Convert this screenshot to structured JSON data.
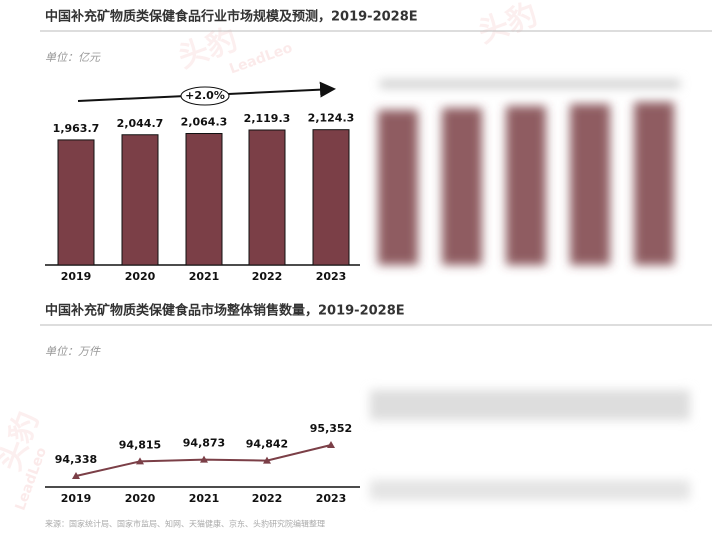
{
  "chart_data": [
    {
      "type": "bar",
      "title": "中国补充矿物质类保健食品行业市场规模及预测，2019-2028E",
      "unit": "单位：亿元",
      "annotation": "+2.0%",
      "categories": [
        "2019",
        "2020",
        "2021",
        "2022",
        "2023"
      ],
      "values": [
        1963.7,
        2044.7,
        2064.3,
        2119.3,
        2124.3
      ],
      "value_labels": [
        "1,963.7",
        "2,044.7",
        "2,064.3",
        "2,119.3",
        "2,124.3"
      ],
      "color": "#7b3f47"
    },
    {
      "type": "line",
      "title": "中国补充矿物质类保健食品市场整体销售数量，2019-2028E",
      "unit": "单位：万件",
      "categories": [
        "2019",
        "2020",
        "2021",
        "2022",
        "2023"
      ],
      "values": [
        94338,
        94815,
        94873,
        94842,
        95352
      ],
      "value_labels": [
        "94,338",
        "94,815",
        "94,873",
        "94,842",
        "95,352"
      ],
      "color": "#7b3f47"
    }
  ],
  "source": "来源：国家统计局、国家市监局、知网、天猫健康、京东、头豹研究院编辑整理",
  "watermark": [
    "头豹",
    "LeadLeo"
  ]
}
